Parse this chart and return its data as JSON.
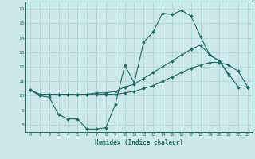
{
  "xlabel": "Humidex (Indice chaleur)",
  "background_color": "#cce8ea",
  "grid_color": "#aacfd2",
  "line_color": "#1a6b60",
  "xlim": [
    -0.5,
    23.5
  ],
  "ylim": [
    7.5,
    16.5
  ],
  "yticks": [
    8,
    9,
    10,
    11,
    12,
    13,
    14,
    15,
    16
  ],
  "xticks": [
    0,
    1,
    2,
    3,
    4,
    5,
    6,
    7,
    8,
    9,
    10,
    11,
    12,
    13,
    14,
    15,
    16,
    17,
    18,
    19,
    20,
    21,
    22,
    23
  ],
  "line1_x": [
    0,
    1,
    2,
    3,
    4,
    5,
    6,
    7,
    8,
    9,
    10,
    11,
    12,
    13,
    14,
    15,
    16,
    17,
    18,
    19,
    20,
    21
  ],
  "line1_y": [
    10.4,
    10.0,
    9.9,
    8.7,
    8.4,
    8.4,
    7.7,
    7.7,
    7.8,
    9.4,
    12.1,
    10.9,
    13.7,
    14.4,
    15.7,
    15.6,
    15.9,
    15.5,
    14.1,
    12.8,
    12.4,
    11.4
  ],
  "line2_x": [
    0,
    1,
    2,
    3,
    4,
    5,
    6,
    7,
    8,
    9,
    10,
    11,
    12,
    13,
    14,
    15,
    16,
    17,
    18,
    19,
    20,
    21,
    22,
    23
  ],
  "line2_y": [
    10.4,
    10.1,
    10.1,
    10.1,
    10.1,
    10.1,
    10.1,
    10.2,
    10.2,
    10.3,
    10.6,
    10.8,
    11.2,
    11.6,
    12.0,
    12.4,
    12.8,
    13.2,
    13.5,
    12.8,
    12.4,
    11.5,
    10.6,
    10.6
  ],
  "line3_x": [
    0,
    1,
    2,
    3,
    4,
    5,
    6,
    7,
    8,
    9,
    10,
    11,
    12,
    13,
    14,
    15,
    16,
    17,
    18,
    19,
    20,
    21,
    22,
    23
  ],
  "line3_y": [
    10.4,
    10.1,
    10.1,
    10.1,
    10.1,
    10.1,
    10.1,
    10.1,
    10.1,
    10.1,
    10.2,
    10.3,
    10.5,
    10.7,
    11.0,
    11.3,
    11.6,
    11.9,
    12.1,
    12.3,
    12.3,
    12.1,
    11.7,
    10.6
  ]
}
